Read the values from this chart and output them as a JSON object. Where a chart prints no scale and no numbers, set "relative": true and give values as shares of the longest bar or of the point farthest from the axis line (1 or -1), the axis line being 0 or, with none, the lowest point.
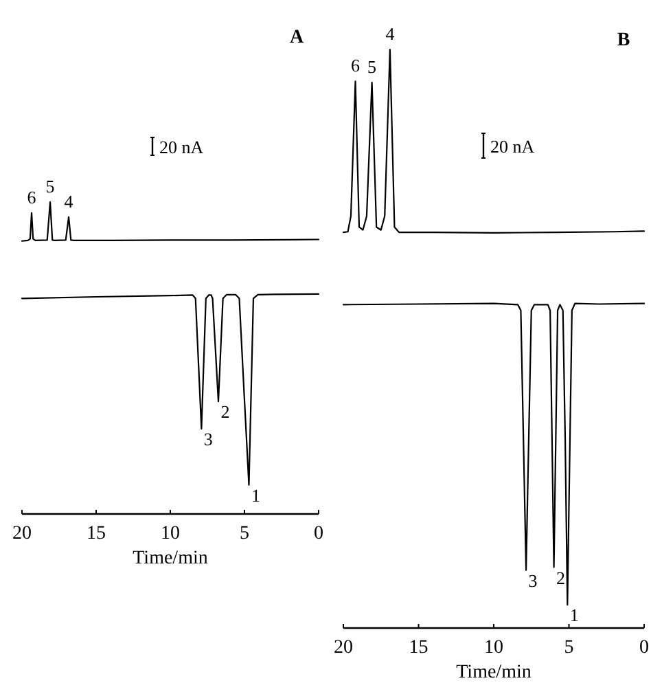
{
  "chart_data": [
    {
      "type": "line",
      "title": "A",
      "xlabel": "Time/min",
      "relative": true,
      "xlim": [
        20,
        0
      ],
      "xticks": [
        20,
        15,
        10,
        5,
        0
      ],
      "series": [
        {
          "color": "#000000",
          "x": [
            20,
            19.6,
            19.45,
            19.35,
            19.25,
            19.1,
            18.3,
            18.1,
            17.95,
            17.8,
            17.05,
            16.85,
            16.7,
            16.5,
            14,
            10,
            6,
            2,
            0
          ],
          "values": [
            0.875,
            0.877,
            0.882,
            0.965,
            0.882,
            0.877,
            0.878,
            1,
            0.878,
            0.877,
            0.878,
            0.952,
            0.878,
            0.877,
            0.877,
            0.878,
            0.878,
            0.879,
            0.88
          ]
        },
        {
          "color": "#000000",
          "x": [
            20,
            15,
            10,
            8.5,
            8.3,
            7.9,
            7.6,
            7.4,
            7.25,
            7.15,
            6.76,
            6.45,
            6.2,
            5.6,
            5.35,
            5.0,
            4.7,
            4.4,
            4.1,
            3,
            0
          ],
          "values": [
            0.691,
            0.696,
            0.7,
            0.702,
            0.691,
            0.273,
            0.691,
            0.702,
            0.702,
            0.691,
            0.361,
            0.691,
            0.703,
            0.703,
            0.691,
            0.365,
            0.093,
            0.691,
            0.703,
            0.704,
            0.705
          ]
        }
      ],
      "annotations": [
        "20 nA",
        {
          "text": "6",
          "x": 19.35,
          "y": 0.965
        },
        {
          "text": "5",
          "x": 18.1,
          "y": 1
        },
        {
          "text": "4",
          "x": 16.85,
          "y": 0.952
        },
        {
          "text": "3",
          "x": 7.9,
          "y": 0.273
        },
        {
          "text": "2",
          "x": 6.76,
          "y": 0.361
        },
        {
          "text": "1",
          "x": 4.7,
          "y": 0.093
        }
      ]
    },
    {
      "type": "line",
      "title": "B",
      "xlabel": "Time/min",
      "relative": true,
      "xlim": [
        20,
        0
      ],
      "xticks": [
        20,
        15,
        10,
        5,
        0
      ],
      "series": [
        {
          "color": "#000000",
          "x": [
            20,
            19.7,
            19.5,
            19.2,
            18.95,
            18.7,
            18.45,
            18.1,
            17.8,
            17.5,
            17.25,
            16.9,
            16.6,
            16.3,
            14,
            10,
            6,
            2,
            0
          ],
          "values": [
            0.684,
            0.685,
            0.712,
            0.945,
            0.693,
            0.688,
            0.712,
            0.943,
            0.693,
            0.688,
            0.712,
            1,
            0.693,
            0.684,
            0.684,
            0.683,
            0.684,
            0.685,
            0.686
          ]
        },
        {
          "color": "#000000",
          "x": [
            20,
            15,
            10,
            8.4,
            8.2,
            7.85,
            7.5,
            7.3,
            6.4,
            6.25,
            6.0,
            5.75,
            5.6,
            5.4,
            5.25,
            5.1,
            4.8,
            4.6,
            3,
            0
          ],
          "values": [
            0.559,
            0.56,
            0.561,
            0.559,
            0.549,
            0.1,
            0.549,
            0.559,
            0.559,
            0.549,
            0.105,
            0.549,
            0.559,
            0.549,
            0.328,
            0.04,
            0.549,
            0.561,
            0.56,
            0.561
          ]
        }
      ],
      "annotations": [
        "20 nA",
        {
          "text": "6",
          "x": 19.2,
          "y": 0.945
        },
        {
          "text": "5",
          "x": 18.1,
          "y": 0.943
        },
        {
          "text": "4",
          "x": 16.9,
          "y": 1
        },
        {
          "text": "3",
          "x": 7.85,
          "y": 0.1
        },
        {
          "text": "2",
          "x": 6.0,
          "y": 0.105
        },
        {
          "text": "1",
          "x": 5.1,
          "y": 0.04
        }
      ]
    }
  ]
}
